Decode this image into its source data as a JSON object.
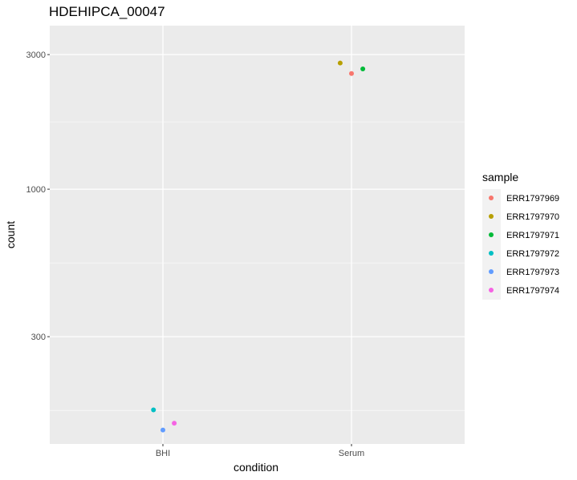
{
  "chart_data": {
    "type": "scatter",
    "title": "HDEHIPCA_00047",
    "xlabel": "condition",
    "ylabel": "count",
    "y_scale": "log10",
    "categories": [
      "BHI",
      "Serum"
    ],
    "y_ticks": [
      300,
      1000,
      3000
    ],
    "ylim": [
      125,
      3800
    ],
    "grid": true,
    "legend": {
      "title": "sample",
      "placement": "right",
      "entries": [
        {
          "name": "ERR1797969",
          "color": "#F8766D"
        },
        {
          "name": "ERR1797970",
          "color": "#B79F00"
        },
        {
          "name": "ERR1797971",
          "color": "#00BA38"
        },
        {
          "name": "ERR1797972",
          "color": "#00BFC4"
        },
        {
          "name": "ERR1797973",
          "color": "#619CFF"
        },
        {
          "name": "ERR1797974",
          "color": "#F564E3"
        }
      ]
    },
    "series": [
      {
        "sample": "ERR1797969",
        "condition": "Serum",
        "jitter": 0.0,
        "value": 2570
      },
      {
        "sample": "ERR1797970",
        "condition": "Serum",
        "jitter": -0.06,
        "value": 2800
      },
      {
        "sample": "ERR1797971",
        "condition": "Serum",
        "jitter": 0.06,
        "value": 2670
      },
      {
        "sample": "ERR1797972",
        "condition": "BHI",
        "jitter": -0.05,
        "value": 165
      },
      {
        "sample": "ERR1797973",
        "condition": "BHI",
        "jitter": 0.0,
        "value": 140
      },
      {
        "sample": "ERR1797974",
        "condition": "BHI",
        "jitter": 0.06,
        "value": 148
      }
    ]
  }
}
